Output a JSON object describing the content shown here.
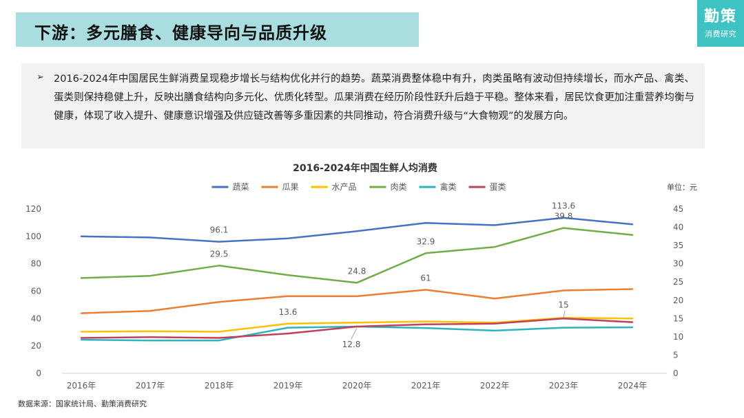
{
  "header": {
    "title": "下游：多元膳食、健康导向与品质升级",
    "logo_main": "勤策",
    "logo_sub": "消费研究"
  },
  "summary": {
    "bullet": "➢",
    "text": "2016-2024年中国居民生鲜消费呈现稳步增长与结构优化并行的趋势。蔬菜消费整体稳中有升，肉类虽略有波动但持续增长，而水产品、禽类、蛋类则保持稳健上升，反映出膳食结构向多元化、优质化转型。瓜果消费在经历阶段性跃升后趋于平稳。整体来看，居民饮食更加注重营养均衡与健康，体现了收入提升、健康意识增强及供应链改善等多重因素的共同推动，符合消费升级与“大食物观”的发展方向。"
  },
  "chart_data": {
    "type": "line",
    "title": "2016-2024年中国生鲜人均消费",
    "unit_label": "单位：元",
    "categories": [
      "2016年",
      "2017年",
      "2018年",
      "2019年",
      "2020年",
      "2021年",
      "2022年",
      "2023年",
      "2024年"
    ],
    "y_left": {
      "min": 0,
      "max": 120,
      "ticks": [
        0,
        20,
        40,
        60,
        80,
        100,
        120
      ]
    },
    "y_right": {
      "min": 0,
      "max": 45,
      "ticks": [
        0,
        5,
        10,
        15,
        20,
        25,
        30,
        35,
        40,
        45
      ]
    },
    "legend_position": "top-center",
    "grid": false,
    "series": [
      {
        "name": "蔬菜",
        "axis": "left",
        "color": "#4472c4",
        "values": [
          100,
          99.2,
          96.1,
          98.5,
          103.8,
          109.8,
          108.2,
          113.6,
          108.8
        ]
      },
      {
        "name": "瓜果",
        "axis": "left",
        "color": "#ed7d31",
        "values": [
          43.9,
          45.6,
          52.1,
          56.4,
          56.3,
          61,
          54.6,
          60.5,
          61.5
        ]
      },
      {
        "name": "水产品",
        "axis": "right",
        "color": "#ffc000",
        "values": [
          11.4,
          11.5,
          11.4,
          13.6,
          13.9,
          14.2,
          13.9,
          15.2,
          15.0
        ]
      },
      {
        "name": "肉类",
        "axis": "right",
        "color": "#70ad47",
        "values": [
          26.1,
          26.7,
          29.5,
          26.9,
          24.8,
          32.9,
          34.6,
          39.8,
          37.9
        ]
      },
      {
        "name": "禽类",
        "axis": "right",
        "color": "#2bb3c0",
        "values": [
          9.2,
          9.0,
          9.0,
          12.5,
          12.8,
          12.4,
          11.7,
          12.5,
          12.6
        ]
      },
      {
        "name": "蛋类",
        "axis": "right",
        "color": "#c0405b",
        "values": [
          9.7,
          9.9,
          9.7,
          10.9,
          12.8,
          13.4,
          13.6,
          15.0,
          14.0
        ]
      }
    ],
    "data_labels": [
      {
        "series": "蔬菜",
        "index": 2,
        "text": "96.1"
      },
      {
        "series": "蔬菜",
        "index": 7,
        "text": "113.6"
      },
      {
        "series": "肉类",
        "index": 2,
        "text": "29.5"
      },
      {
        "series": "肉类",
        "index": 4,
        "text": "24.8"
      },
      {
        "series": "肉类",
        "index": 5,
        "text": "32.9"
      },
      {
        "series": "肉类",
        "index": 7,
        "text": "39.8"
      },
      {
        "series": "瓜果",
        "index": 5,
        "text": "61"
      },
      {
        "series": "水产品",
        "index": 3,
        "text": "13.6"
      },
      {
        "series": "禽类",
        "index": 4,
        "text": "12.8"
      },
      {
        "series": "蛋类",
        "index": 7,
        "text": "15"
      }
    ]
  },
  "footer": {
    "source": "数据来源：国家统计局、勤策消费研究"
  }
}
